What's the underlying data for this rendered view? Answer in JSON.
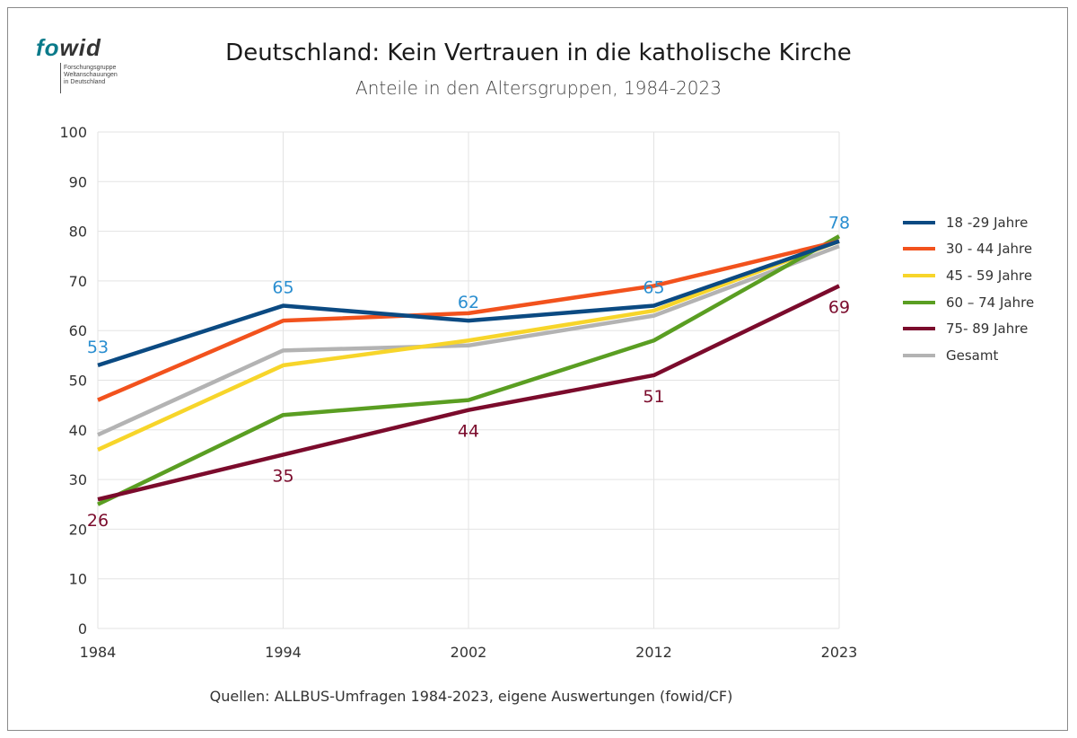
{
  "logo": {
    "word_fo": "fo",
    "word_wid": "wid",
    "lines": [
      "Forschungsgruppe",
      "Weltanschauungen",
      "in Deutschland"
    ]
  },
  "header": {
    "title": "Deutschland: Kein Vertrauen in die katholische Kirche",
    "subtitle": "Anteile in den Altersgruppen, 1984-2023"
  },
  "footer": {
    "source": "Quellen: ALLBUS-Umfragen 1984-2023, eigene Auswertungen (fowid/CF)"
  },
  "chart_data": {
    "type": "line",
    "title": "Deutschland: Kein Vertrauen in die katholische Kirche",
    "subtitle": "Anteile in den Altersgruppen, 1984-2023",
    "x": [
      "1984",
      "1994",
      "2002",
      "2012",
      "2023"
    ],
    "ylim": [
      0,
      100
    ],
    "yticks": [
      0,
      10,
      20,
      30,
      40,
      50,
      60,
      70,
      80,
      90,
      100
    ],
    "grid": true,
    "legend_position": "right",
    "series": [
      {
        "name": "18 -29 Jahre",
        "color": "#0b4a82",
        "values": [
          53,
          65,
          62,
          65,
          78
        ]
      },
      {
        "name": "30 - 44 Jahre",
        "color": "#f2521d",
        "values": [
          46,
          62,
          63.5,
          69,
          78
        ]
      },
      {
        "name": "45 - 59 Jahre",
        "color": "#f7d52a",
        "values": [
          36,
          53,
          58,
          64,
          78
        ]
      },
      {
        "name": "60 – 74 Jahre",
        "color": "#5a9e22",
        "values": [
          25,
          43,
          46,
          58,
          79
        ]
      },
      {
        "name": "75- 89 Jahre",
        "color": "#7b0b2c",
        "values": [
          26,
          35,
          44,
          51,
          69
        ]
      },
      {
        "name": "Gesamt",
        "color": "#b3b3b3",
        "values": [
          39,
          56,
          57,
          63,
          77
        ]
      }
    ],
    "data_labels": [
      {
        "series": "18 -29 Jahre",
        "x": "1984",
        "text": "53",
        "color": "#2a8ed0"
      },
      {
        "series": "18 -29 Jahre",
        "x": "1994",
        "text": "65",
        "color": "#2a8ed0"
      },
      {
        "series": "18 -29 Jahre",
        "x": "2002",
        "text": "62",
        "color": "#2a8ed0"
      },
      {
        "series": "18 -29 Jahre",
        "x": "2012",
        "text": "65",
        "color": "#2a8ed0"
      },
      {
        "series": "18 -29 Jahre",
        "x": "2023",
        "text": "78",
        "color": "#2a8ed0"
      },
      {
        "series": "75- 89 Jahre",
        "x": "1984",
        "text": "26",
        "color": "#7b0b2c"
      },
      {
        "series": "75- 89 Jahre",
        "x": "1994",
        "text": "35",
        "color": "#7b0b2c"
      },
      {
        "series": "75- 89 Jahre",
        "x": "2002",
        "text": "44",
        "color": "#7b0b2c"
      },
      {
        "series": "75- 89 Jahre",
        "x": "2012",
        "text": "51",
        "color": "#7b0b2c"
      },
      {
        "series": "75- 89 Jahre",
        "x": "2023",
        "text": "69",
        "color": "#7b0b2c"
      }
    ]
  }
}
